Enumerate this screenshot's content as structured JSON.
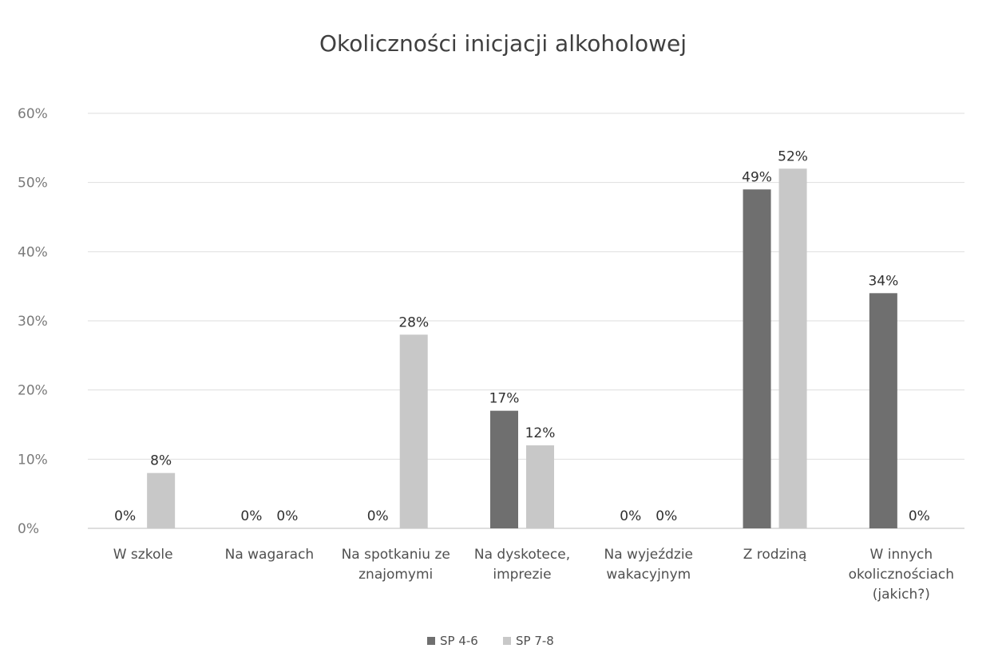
{
  "chart_data": {
    "type": "bar",
    "title": "Okoliczności inicjacji alkoholowej",
    "xlabel": "",
    "ylabel": "",
    "ylim": [
      0,
      60
    ],
    "y_ticks": [
      "0%",
      "10%",
      "20%",
      "30%",
      "40%",
      "50%",
      "60%"
    ],
    "y_tick_values": [
      0,
      10,
      20,
      30,
      40,
      50,
      60
    ],
    "grid": true,
    "legend_position": "bottom",
    "categories": [
      [
        "W szkole"
      ],
      [
        "Na wagarach"
      ],
      [
        "Na spotkaniu ze",
        "znajomymi"
      ],
      [
        "Na dyskotece,",
        "imprezie"
      ],
      [
        "Na wyjeździe",
        "wakacyjnym"
      ],
      [
        "Z rodziną"
      ],
      [
        "W innych",
        "okolicznościach",
        "(jakich?)"
      ]
    ],
    "series": [
      {
        "name": "SP 4-6",
        "color": "#6f6f6f",
        "values": [
          0,
          0,
          0,
          17,
          0,
          49,
          34
        ],
        "labels": [
          "0%",
          "0%",
          "0%",
          "17%",
          "0%",
          "49%",
          "34%"
        ]
      },
      {
        "name": "SP 7-8",
        "color": "#c8c8c8",
        "values": [
          8,
          0,
          28,
          12,
          0,
          52,
          0
        ],
        "labels": [
          "8%",
          "0%",
          "28%",
          "12%",
          "0%",
          "52%",
          "0%"
        ]
      }
    ]
  }
}
